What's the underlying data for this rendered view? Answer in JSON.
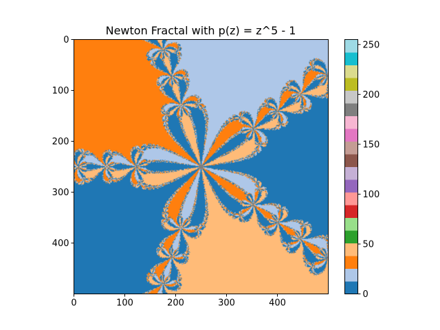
{
  "chart_data": {
    "type": "heatmap",
    "title": "Newton Fractal with p(z) = z^5 - 1",
    "xlabel": "",
    "ylabel": "",
    "grid": false,
    "image_size": [
      500,
      500
    ],
    "xlim": [
      0,
      500
    ],
    "ylim": [
      500,
      0
    ],
    "x_ticks": [
      0,
      100,
      200,
      300,
      400
    ],
    "y_ticks": [
      0,
      100,
      200,
      300,
      400
    ],
    "colormap": "tab20",
    "colorbar": {
      "range": [
        0,
        255
      ],
      "ticks": [
        0,
        50,
        100,
        150,
        200,
        250
      ],
      "colors": [
        "#1f77b4",
        "#aec7e8",
        "#ff7f0e",
        "#ffbb78",
        "#2ca02c",
        "#98df8a",
        "#d62728",
        "#ff9896",
        "#9467bd",
        "#c5b0d5",
        "#8c564b",
        "#c49c94",
        "#e377c2",
        "#f7b6d2",
        "#7f7f7f",
        "#c7c7c7",
        "#bcbd22",
        "#dbdb8d",
        "#17becf",
        "#9edae5"
      ]
    },
    "polynomial": "z^5 - 1",
    "basin_colors": [
      "#1f77b4",
      "#aec7e8",
      "#ff7f0e",
      "#1f77b4",
      "#ffbb78"
    ],
    "boundary_color": "#7f7f7f"
  }
}
